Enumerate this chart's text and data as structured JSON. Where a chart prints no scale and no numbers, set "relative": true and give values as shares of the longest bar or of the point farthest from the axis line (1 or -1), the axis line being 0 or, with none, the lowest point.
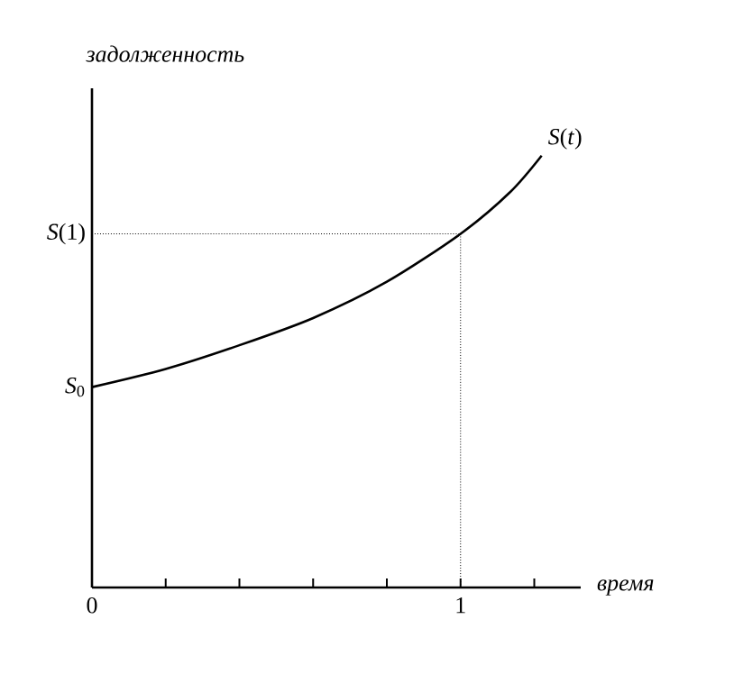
{
  "chart_data": {
    "type": "line",
    "xlabel": "время",
    "ylabel": "задолженность",
    "relative": true,
    "x": [
      0,
      0.2,
      0.4,
      0.6,
      0.8,
      1.0,
      1.135,
      1.22
    ],
    "series": [
      {
        "name": "*S*(*t*)",
        "color": "#000000",
        "values": [
          0.464,
          0.506,
          0.561,
          0.624,
          0.708,
          0.819,
          0.916,
          1.0
        ]
      }
    ],
    "xlim": [
      0,
      1.326
    ],
    "xticks": [
      0,
      {
        "value": 0.2,
        "label": null
      },
      {
        "value": 0.4,
        "label": null
      },
      {
        "value": 0.6,
        "label": null
      },
      {
        "value": 0.8,
        "label": null
      },
      1,
      {
        "value": 1.2,
        "label": null
      }
    ],
    "ref_lines": [
      {
        "axis": "y",
        "value": 0.819,
        "label": "*S*(1)",
        "line_style": "dotted",
        "color": "#000000"
      },
      {
        "axis": "x",
        "value": 1,
        "line_style": "dotted",
        "color": "#000000"
      }
    ],
    "annotations": [
      {
        "text": "*S*$_{0}$",
        "x": 0,
        "y": 0.464
      }
    ]
  }
}
